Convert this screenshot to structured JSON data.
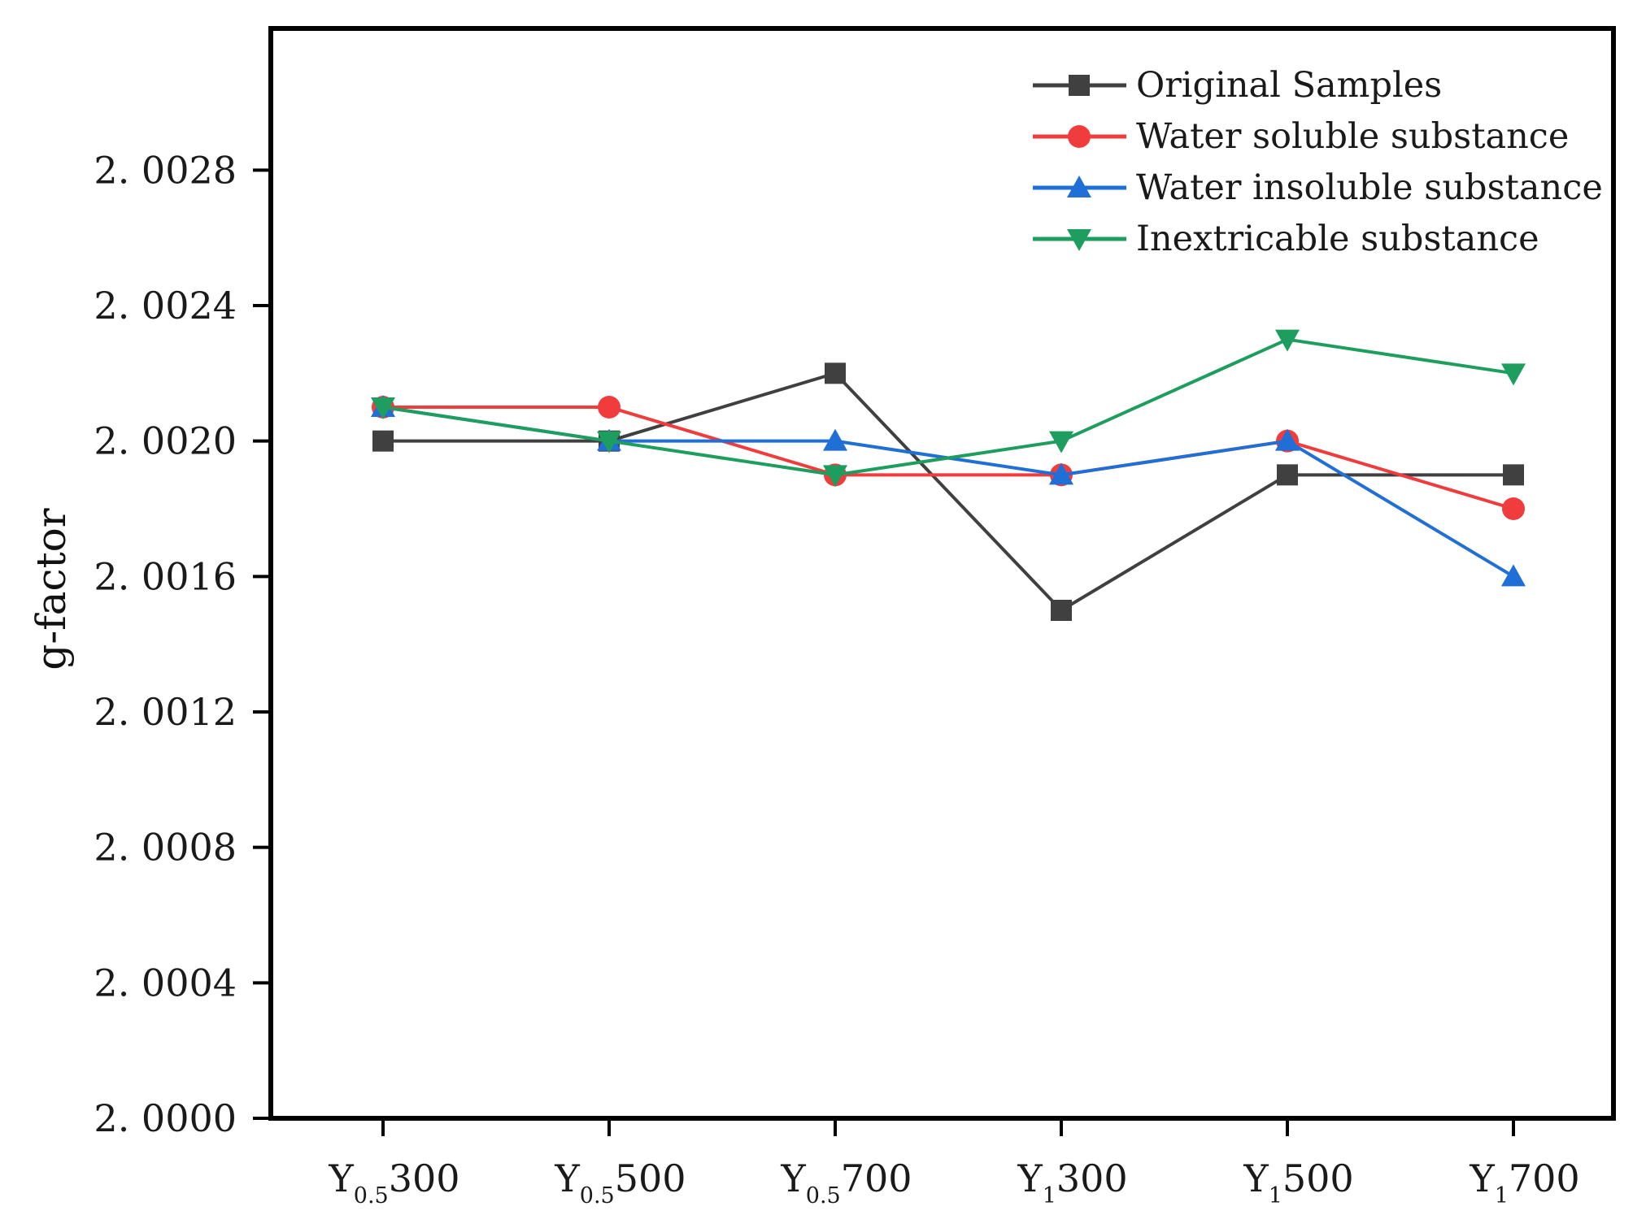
{
  "chart_data": {
    "type": "line",
    "title": "",
    "xlabel": "",
    "ylabel": "g-factor",
    "ylim": [
      2.0,
      2.003
    ],
    "yticks": [
      "2. 0000",
      "2. 0004",
      "2. 0008",
      "2. 0012",
      "2. 0016",
      "2. 0020",
      "2. 0024",
      "2. 0028"
    ],
    "ytick_values": [
      2.0,
      2.0004,
      2.0008,
      2.0012,
      2.0016,
      2.002,
      2.0024,
      2.0028
    ],
    "categories": [
      {
        "base": "Y",
        "sub": "0.5",
        "suffix": "300"
      },
      {
        "base": "Y",
        "sub": "0.5",
        "suffix": "500"
      },
      {
        "base": "Y",
        "sub": "0.5",
        "suffix": "700"
      },
      {
        "base": "Y",
        "sub": "1",
        "suffix": "300"
      },
      {
        "base": "Y",
        "sub": "1",
        "suffix": "500"
      },
      {
        "base": "Y",
        "sub": "1",
        "suffix": "700"
      }
    ],
    "legend_position": "top-right",
    "grid": false,
    "series": [
      {
        "name": "Original Samples",
        "color": "#404040",
        "marker": "square",
        "values": [
          2.002,
          2.002,
          2.0022,
          2.0015,
          2.0019,
          2.0019
        ]
      },
      {
        "name": "Water soluble substance",
        "color": "#f03c3c",
        "marker": "circle",
        "values": [
          2.0021,
          2.0021,
          2.0019,
          2.0019,
          2.002,
          2.0018
        ]
      },
      {
        "name": "Water insoluble substance",
        "color": "#1f6fd6",
        "marker": "triangle-up",
        "values": [
          2.0021,
          2.002,
          2.002,
          2.0019,
          2.002,
          2.0016
        ]
      },
      {
        "name": "Inextricable substance",
        "color": "#1e9e5e",
        "marker": "triangle-down",
        "values": [
          2.0021,
          2.002,
          2.0019,
          2.002,
          2.0023,
          2.0022
        ]
      }
    ]
  }
}
